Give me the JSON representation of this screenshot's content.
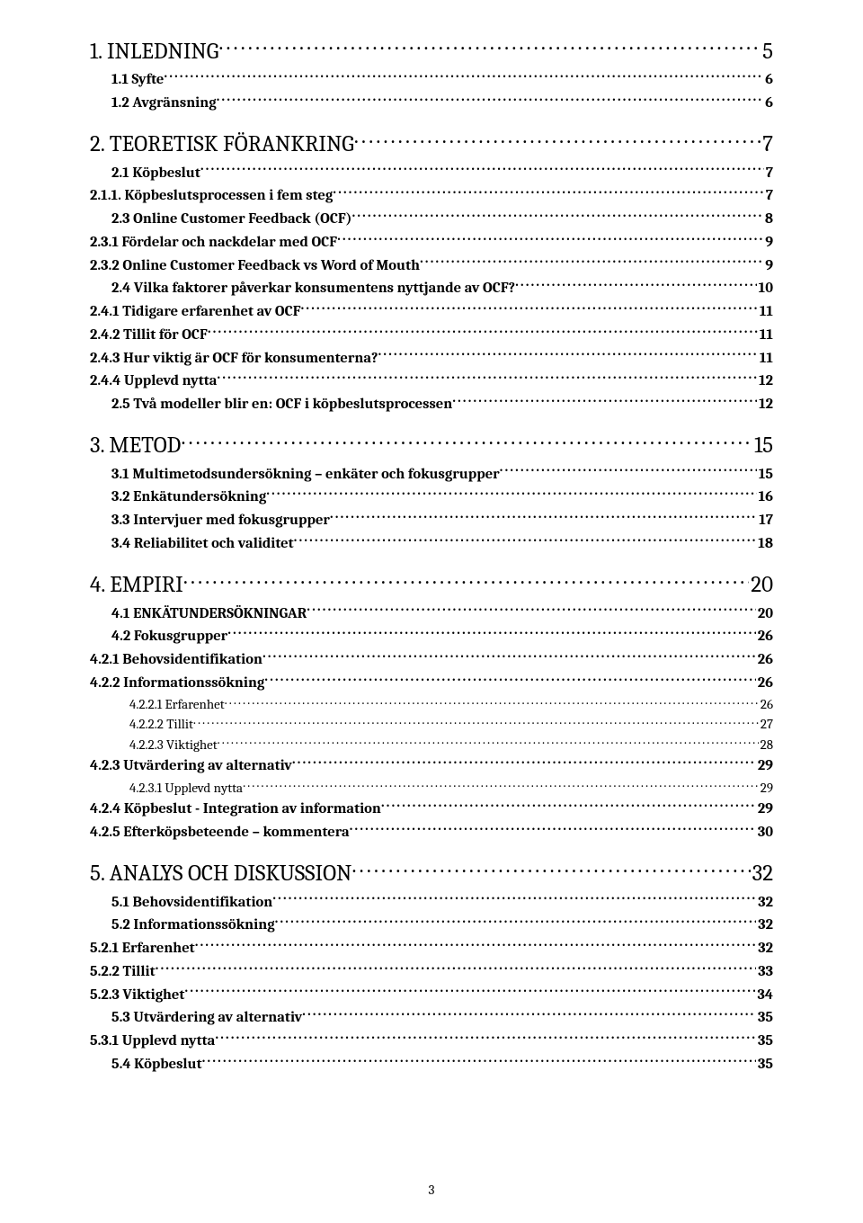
{
  "page_number": "3",
  "colors": {
    "text": "#000000",
    "background": "#ffffff"
  },
  "toc": [
    {
      "level": "l1",
      "label": "1. INLEDNING",
      "page": "5"
    },
    {
      "level": "l2",
      "label": "1.1 Syfte",
      "page": "6"
    },
    {
      "level": "l2",
      "label": "1.2 Avgränsning",
      "page": "6"
    },
    {
      "level": "gap"
    },
    {
      "level": "l1",
      "label": "2. TEORETISK FÖRANKRING",
      "page": "7"
    },
    {
      "level": "l2",
      "label": "2.1 Köpbeslut",
      "page": "7"
    },
    {
      "level": "l3",
      "label": "2.1.1. Köpbeslutsprocessen i fem steg",
      "page": "7"
    },
    {
      "level": "l2",
      "label": "2.3 Online Customer Feedback (OCF)",
      "page": "8"
    },
    {
      "level": "l3",
      "label": "2.3.1 Fördelar och nackdelar med OCF",
      "page": "9"
    },
    {
      "level": "l3",
      "label": "2.3.2 Online Customer Feedback vs Word of Mouth",
      "page": "9"
    },
    {
      "level": "l2",
      "label": "2.4 Vilka faktorer påverkar konsumentens nyttjande av OCF?",
      "page": "10"
    },
    {
      "level": "l3",
      "label": "2.4.1 Tidigare erfarenhet av OCF",
      "page": "11"
    },
    {
      "level": "l3",
      "label": "2.4.2 Tillit för OCF",
      "page": "11"
    },
    {
      "level": "l3",
      "label": "2.4.3 Hur viktig är OCF för konsumenterna?",
      "page": "11"
    },
    {
      "level": "l3",
      "label": "2.4.4 Upplevd nytta",
      "page": "12"
    },
    {
      "level": "l2",
      "label": "2.5  Två modeller blir en: OCF i köpbeslutsprocessen",
      "page": "12"
    },
    {
      "level": "gap"
    },
    {
      "level": "l1",
      "label": "3. METOD",
      "page": "15"
    },
    {
      "level": "l2",
      "label": "3.1 Multimetodsundersökning – enkäter och fokusgrupper",
      "page": "15"
    },
    {
      "level": "l2",
      "label": "3.2 Enkätundersökning",
      "page": "16"
    },
    {
      "level": "l2",
      "label": "3.3 Intervjuer med fokusgrupper",
      "page": "17"
    },
    {
      "level": "l2",
      "label": "3.4 Reliabilitet och validitet",
      "page": "18"
    },
    {
      "level": "gap"
    },
    {
      "level": "l1",
      "label": "4. EMPIRI",
      "page": "20"
    },
    {
      "level": "l2",
      "label": "4.1 ENKÄTUNDERSÖKNINGAR",
      "page": "20"
    },
    {
      "level": "l2",
      "label": "4.2 Fokusgrupper",
      "page": "26"
    },
    {
      "level": "l3",
      "label": "4.2.1 Behovsidentifikation",
      "page": "26"
    },
    {
      "level": "l3",
      "label": "4.2.2 Informationssökning",
      "page": "26"
    },
    {
      "level": "l4",
      "label": "4.2.2.1 Erfarenhet",
      "page": "26"
    },
    {
      "level": "l4",
      "label": "4.2.2.2 Tillit",
      "page": "27"
    },
    {
      "level": "l4",
      "label": "4.2.2.3 Viktighet",
      "page": "28"
    },
    {
      "level": "l3",
      "label": "4.2.3 Utvärdering av alternativ",
      "page": "29"
    },
    {
      "level": "l4",
      "label": "4.2.3.1 Upplevd nytta",
      "page": "29"
    },
    {
      "level": "l3",
      "label": "4.2.4 Köpbeslut - Integration av information",
      "page": "29"
    },
    {
      "level": "l3",
      "label": "4.2.5 Efterköpsbeteende – kommentera",
      "page": "30"
    },
    {
      "level": "gap"
    },
    {
      "level": "l1",
      "label": "5. ANALYS OCH DISKUSSION",
      "page": "32"
    },
    {
      "level": "l2",
      "label": "5.1 Behovsidentifikation",
      "page": "32"
    },
    {
      "level": "l2",
      "label": "5.2 Informationssökning",
      "page": "32"
    },
    {
      "level": "l3",
      "label": "5.2.1 Erfarenhet",
      "page": "32"
    },
    {
      "level": "l3",
      "label": "5.2.2 Tillit",
      "page": "33"
    },
    {
      "level": "l3",
      "label": "5.2.3 Viktighet",
      "page": "34"
    },
    {
      "level": "l2",
      "label": "5.3 Utvärdering av alternativ",
      "page": "35"
    },
    {
      "level": "l3",
      "label": "5.3.1 Upplevd nytta",
      "page": "35"
    },
    {
      "level": "l2",
      "label": "5.4 Köpbeslut",
      "page": "35"
    }
  ]
}
